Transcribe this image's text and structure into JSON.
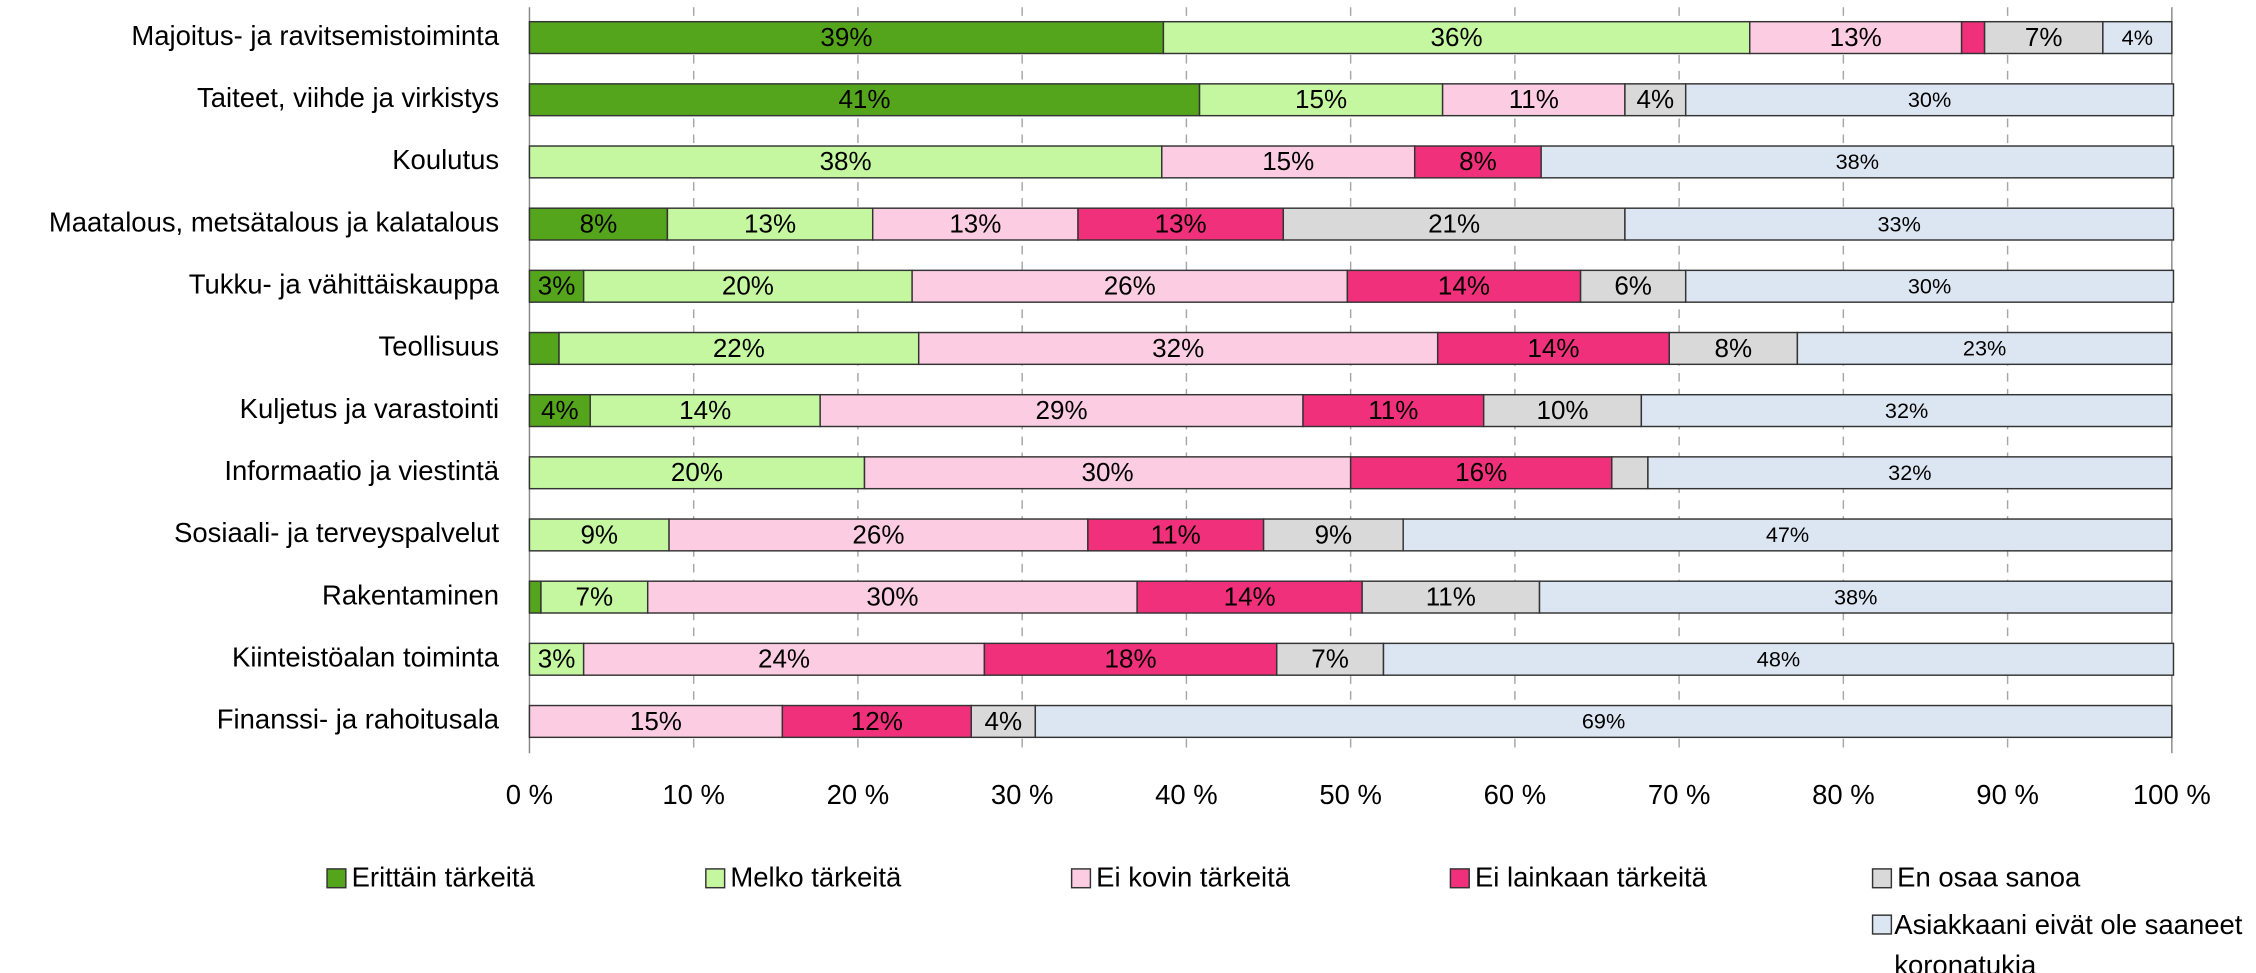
{
  "chart_data": {
    "type": "stacked_barh",
    "categories": [
      "Majoitus- ja ravitsemistoiminta",
      "Taiteet, viihde ja virkistys",
      "Koulutus",
      "Maatalous, metsätalous ja kalatalous",
      "Tukku- ja vähittäiskauppa",
      "Teollisuus",
      "Kuljetus ja varastointi",
      "Informaatio ja viestintä",
      "Sosiaali- ja terveyspalvelut",
      "Rakentaminen",
      "Kiinteistöalan toiminta",
      "Finanssi- ja rahoitusala"
    ],
    "series": [
      {
        "name": "Erittäin tärkeitä",
        "color": "#55a51c",
        "values": [
          38.6,
          40.8,
          null,
          8.4,
          3.3,
          1.8,
          3.7,
          null,
          null,
          0.7,
          null,
          null
        ],
        "value_labels": [
          "39%",
          "41%",
          null,
          "8%",
          "3%",
          null,
          "4%",
          null,
          null,
          null,
          null,
          null
        ]
      },
      {
        "name": "Melko tärkeitä",
        "color": "#c4f7a0",
        "values": [
          35.7,
          14.8,
          38.5,
          12.5,
          20,
          21.9,
          14,
          20.4,
          8.5,
          6.5,
          3.3,
          null
        ],
        "value_labels": [
          "36%",
          "15%",
          "38%",
          "13%",
          "20%",
          "22%",
          "14%",
          "20%",
          "9%",
          "7%",
          "3%",
          null
        ]
      },
      {
        "name": "Ei kovin tärkeitä",
        "color": "#fccde2",
        "values": [
          12.9,
          11.1,
          15.4,
          12.5,
          26.5,
          31.6,
          29.4,
          29.6,
          25.5,
          29.8,
          24.4,
          15.4
        ],
        "value_labels": [
          "13%",
          "11%",
          "15%",
          "13%",
          "26%",
          "32%",
          "29%",
          "30%",
          "26%",
          "30%",
          "24%",
          "15%"
        ]
      },
      {
        "name": "Ei lainkaan tärkeitä",
        "color": "#f0307a",
        "values": [
          1.4,
          null,
          7.7,
          12.5,
          14.2,
          14.1,
          11,
          15.9,
          10.7,
          13.7,
          17.8,
          11.5
        ],
        "value_labels": [
          null,
          null,
          "8%",
          "13%",
          "14%",
          "14%",
          "11%",
          "16%",
          "11%",
          "14%",
          "18%",
          "12%"
        ]
      },
      {
        "name": "En osaa sanoa",
        "color": "#d9d9d9",
        "values": [
          7.2,
          3.7,
          null,
          20.8,
          6.4,
          7.8,
          9.6,
          2.2,
          8.5,
          10.8,
          6.5,
          3.9
        ],
        "value_labels": [
          "7%",
          "4%",
          null,
          "21%",
          "6%",
          "8%",
          "10%",
          null,
          "9%",
          "11%",
          "7%",
          "4%"
        ]
      },
      {
        "name": "Asiakkaani eivät ole saaneet koronatukia",
        "color": "#dce6f2",
        "values": [
          4.2,
          29.7,
          38.5,
          33.4,
          29.7,
          22.8,
          32.3,
          31.9,
          46.8,
          38.5,
          48.1,
          69.2
        ],
        "value_labels": [
          "4%",
          "30%",
          "38%",
          "33%",
          "30%",
          "23%",
          "32%",
          "32%",
          "47%",
          "38%",
          "48%",
          "69%"
        ]
      }
    ],
    "xlim": [
      0,
      100
    ],
    "xticks": [
      {
        "value": 0,
        "label": "0 %"
      },
      {
        "value": 10,
        "label": "10 %"
      },
      {
        "value": 20,
        "label": "20 %"
      },
      {
        "value": 30,
        "label": "30 %"
      },
      {
        "value": 40,
        "label": "40 %"
      },
      {
        "value": 50,
        "label": "50 %"
      },
      {
        "value": 60,
        "label": "60 %"
      },
      {
        "value": 70,
        "label": "70 %"
      },
      {
        "value": 80,
        "label": "80 %"
      },
      {
        "value": 90,
        "label": "90 %"
      },
      {
        "value": 100,
        "label": "100 %"
      }
    ],
    "grid": true,
    "legend": "bottom"
  }
}
